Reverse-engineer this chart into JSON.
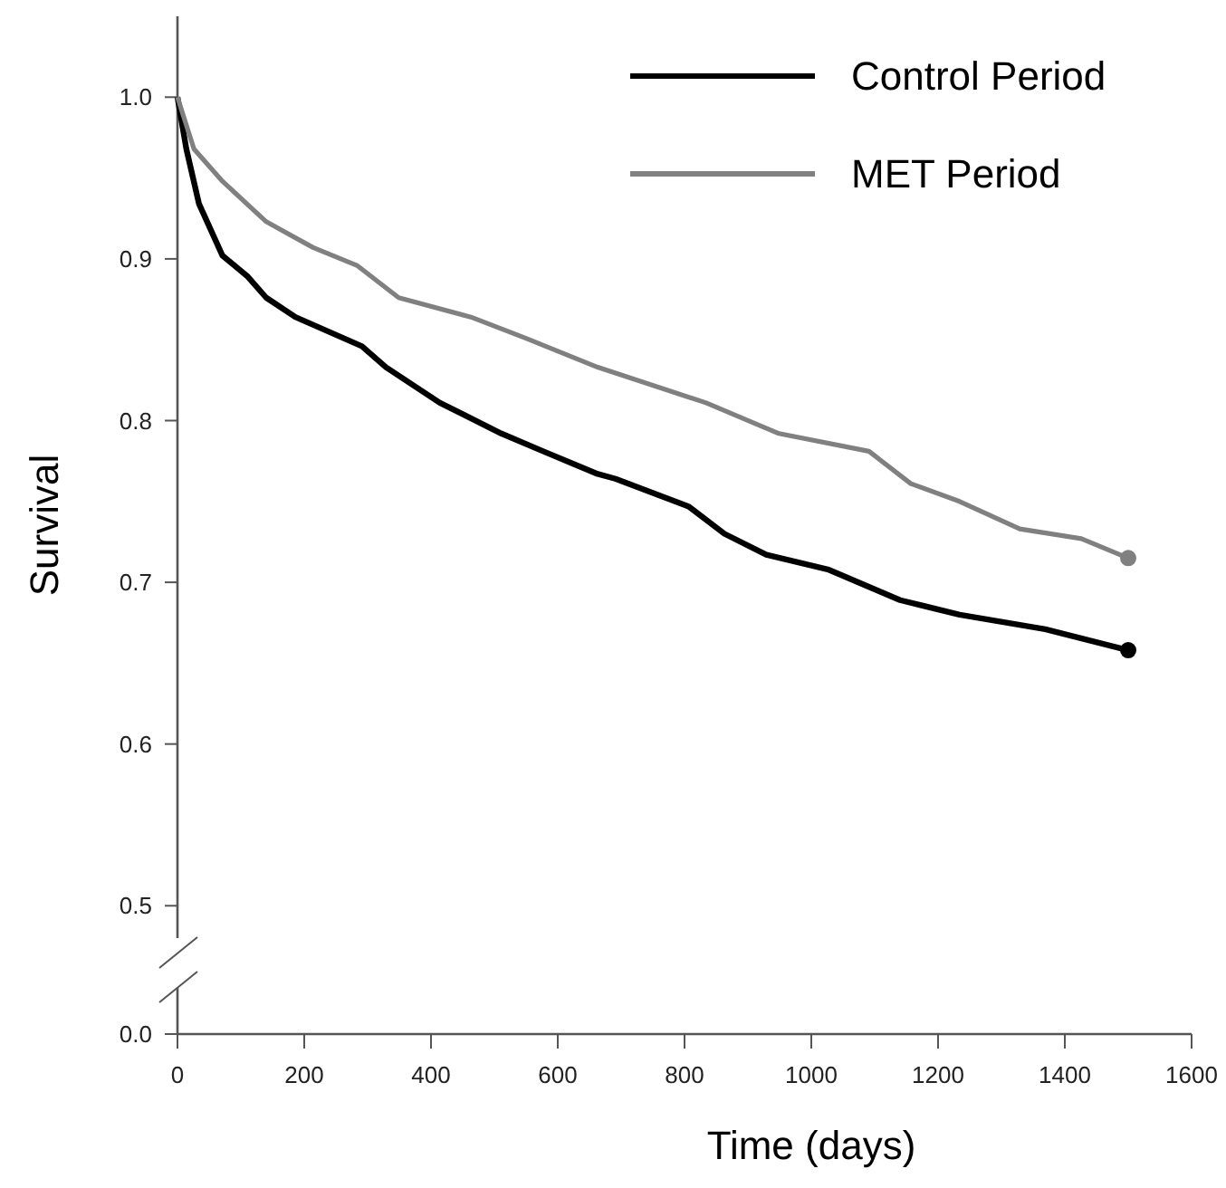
{
  "chart_data": {
    "type": "line",
    "ylabel": "Survival",
    "xlabel": "Time (days)",
    "xlim": [
      0,
      1600
    ],
    "xticks": [
      0,
      200,
      400,
      600,
      800,
      1000,
      1200,
      1400,
      1600
    ],
    "ylim": [
      0.48,
      1.05
    ],
    "yticks": [
      {
        "value": 0.5,
        "label": "0.5"
      },
      {
        "value": 0.6,
        "label": "0.6"
      },
      {
        "value": 0.7,
        "label": "0.7"
      },
      {
        "value": 0.8,
        "label": "0.8"
      },
      {
        "value": 0.9,
        "label": "0.9"
      },
      {
        "value": 1,
        "label": "1.0"
      }
    ],
    "annotations": [
      "0.0"
    ],
    "grid": false,
    "legend": "top right",
    "line_style": "solid",
    "series": [
      {
        "name": "Control Period",
        "color": "#000000",
        "x": [
          0,
          14,
          34,
          71,
          111,
          140,
          186,
          291,
          329,
          414,
          511,
          577,
          663,
          691,
          806,
          863,
          929,
          1026,
          1140,
          1234,
          1369,
          1500
        ],
        "values": [
          1.0,
          0.968,
          0.934,
          0.902,
          0.889,
          0.876,
          0.864,
          0.846,
          0.833,
          0.811,
          0.792,
          0.781,
          0.767,
          0.764,
          0.747,
          0.73,
          0.717,
          0.708,
          0.689,
          0.68,
          0.671,
          0.658
        ]
      },
      {
        "name": "MET Period",
        "color": "#808080",
        "x": [
          0,
          26,
          71,
          140,
          214,
          283,
          349,
          463,
          549,
          663,
          834,
          949,
          1091,
          1157,
          1234,
          1329,
          1426,
          1500
        ],
        "values": [
          1.0,
          0.968,
          0.948,
          0.923,
          0.907,
          0.896,
          0.876,
          0.864,
          0.851,
          0.833,
          0.811,
          0.792,
          0.781,
          0.761,
          0.75,
          0.733,
          0.727,
          0.715
        ]
      },
      {
        "type": "scatter",
        "marker": "circle",
        "color": "#000000",
        "x": [
          1500
        ],
        "values": [
          0.658
        ]
      },
      {
        "type": "scatter",
        "marker": "circle",
        "color": "#808080",
        "x": [
          1500
        ],
        "values": [
          0.715
        ]
      }
    ]
  }
}
